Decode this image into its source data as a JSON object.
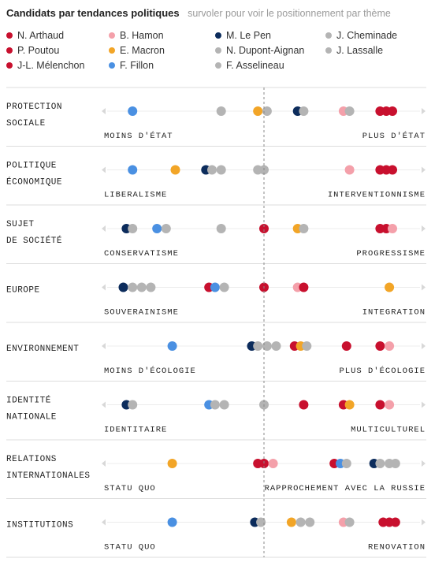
{
  "header": {
    "title": "Candidats par tendances politiques",
    "subtitle": "survoler pour voir le positionnement par thème"
  },
  "colors": {
    "far_left": "#c8102e",
    "socialist": "#f4a0aa",
    "center": "#f2a527",
    "right": "#4a90e2",
    "far_right": "#0c2c5c",
    "minor": "#b4b4b4"
  },
  "legend": [
    {
      "name": "N. Arthaud",
      "color": "#c8102e"
    },
    {
      "name": "B. Hamon",
      "color": "#f4a0aa"
    },
    {
      "name": "M. Le Pen",
      "color": "#0c2c5c"
    },
    {
      "name": "J. Cheminade",
      "color": "#b4b4b4"
    },
    {
      "name": "P. Poutou",
      "color": "#c8102e"
    },
    {
      "name": "E. Macron",
      "color": "#f2a527"
    },
    {
      "name": "N. Dupont-Aignan",
      "color": "#b4b4b4"
    },
    {
      "name": "J. Lassalle",
      "color": "#b4b4b4"
    },
    {
      "name": "J-L. Mélenchon",
      "color": "#c8102e"
    },
    {
      "name": "F. Fillon",
      "color": "#4a90e2"
    },
    {
      "name": "F. Asselineau",
      "color": "#b4b4b4"
    }
  ],
  "chart_data": {
    "type": "scatter",
    "x_range": [
      0,
      100
    ],
    "center_line": 50,
    "rows": [
      {
        "label_lines": [
          "PROTECTION",
          "SOCIALE"
        ],
        "left": "MOINS D'ÉTAT",
        "right": "PLUS D'ÉTAT",
        "points": [
          {
            "x": 7,
            "color": "right"
          },
          {
            "x": 36,
            "color": "minor"
          },
          {
            "x": 48,
            "color": "center"
          },
          {
            "x": 51,
            "color": "minor"
          },
          {
            "x": 61,
            "color": "far_right"
          },
          {
            "x": 63,
            "color": "minor"
          },
          {
            "x": 76,
            "color": "socialist"
          },
          {
            "x": 78,
            "color": "minor"
          },
          {
            "x": 88,
            "color": "far_left"
          },
          {
            "x": 90,
            "color": "far_left"
          },
          {
            "x": 92,
            "color": "far_left"
          }
        ]
      },
      {
        "label_lines": [
          "POLITIQUE",
          "ÉCONOMIQUE"
        ],
        "left": "LIBERALISME",
        "right": "INTERVENTIONNISME",
        "points": [
          {
            "x": 7,
            "color": "right"
          },
          {
            "x": 21,
            "color": "center"
          },
          {
            "x": 31,
            "color": "far_right"
          },
          {
            "x": 33,
            "color": "minor"
          },
          {
            "x": 36,
            "color": "minor"
          },
          {
            "x": 48,
            "color": "minor"
          },
          {
            "x": 50,
            "color": "minor"
          },
          {
            "x": 78,
            "color": "socialist"
          },
          {
            "x": 88,
            "color": "far_left"
          },
          {
            "x": 90,
            "color": "far_left"
          },
          {
            "x": 92,
            "color": "far_left"
          }
        ]
      },
      {
        "label_lines": [
          "SUJET",
          "DE SOCIÉTÉ"
        ],
        "left": "CONSERVATISME",
        "right": "PROGRESSISME",
        "points": [
          {
            "x": 5,
            "color": "far_right"
          },
          {
            "x": 7,
            "color": "minor"
          },
          {
            "x": 15,
            "color": "right"
          },
          {
            "x": 18,
            "color": "minor"
          },
          {
            "x": 36,
            "color": "minor"
          },
          {
            "x": 50,
            "color": "far_left"
          },
          {
            "x": 61,
            "color": "center"
          },
          {
            "x": 63,
            "color": "minor"
          },
          {
            "x": 88,
            "color": "far_left"
          },
          {
            "x": 90,
            "color": "far_left"
          },
          {
            "x": 92,
            "color": "socialist"
          }
        ]
      },
      {
        "label_lines": [
          "EUROPE"
        ],
        "left": "SOUVERAINISME",
        "right": "INTEGRATION",
        "points": [
          {
            "x": 4,
            "color": "far_right"
          },
          {
            "x": 7,
            "color": "minor"
          },
          {
            "x": 10,
            "color": "minor"
          },
          {
            "x": 13,
            "color": "minor"
          },
          {
            "x": 32,
            "color": "far_left"
          },
          {
            "x": 34,
            "color": "right"
          },
          {
            "x": 37,
            "color": "minor"
          },
          {
            "x": 50,
            "color": "far_left"
          },
          {
            "x": 61,
            "color": "socialist"
          },
          {
            "x": 63,
            "color": "far_left"
          },
          {
            "x": 91,
            "color": "center"
          }
        ]
      },
      {
        "label_lines": [
          "ENVIRONNEMENT"
        ],
        "left": "MOINS D'ÉCOLOGIE",
        "right": "PLUS D'ÉCOLOGIE",
        "points": [
          {
            "x": 20,
            "color": "right"
          },
          {
            "x": 46,
            "color": "far_right"
          },
          {
            "x": 48,
            "color": "minor"
          },
          {
            "x": 51,
            "color": "minor"
          },
          {
            "x": 54,
            "color": "minor"
          },
          {
            "x": 60,
            "color": "far_left"
          },
          {
            "x": 62,
            "color": "center"
          },
          {
            "x": 64,
            "color": "minor"
          },
          {
            "x": 77,
            "color": "far_left"
          },
          {
            "x": 88,
            "color": "far_left"
          },
          {
            "x": 91,
            "color": "socialist"
          }
        ]
      },
      {
        "label_lines": [
          "IDENTITÉ",
          "NATIONALE"
        ],
        "left": "IDENTITAIRE",
        "right": "MULTICULTUREL",
        "points": [
          {
            "x": 5,
            "color": "far_right"
          },
          {
            "x": 7,
            "color": "minor"
          },
          {
            "x": 32,
            "color": "right"
          },
          {
            "x": 34,
            "color": "minor"
          },
          {
            "x": 37,
            "color": "minor"
          },
          {
            "x": 50,
            "color": "minor"
          },
          {
            "x": 63,
            "color": "far_left"
          },
          {
            "x": 76,
            "color": "far_left"
          },
          {
            "x": 78,
            "color": "center"
          },
          {
            "x": 88,
            "color": "far_left"
          },
          {
            "x": 91,
            "color": "socialist"
          }
        ]
      },
      {
        "label_lines": [
          "RELATIONS",
          "INTERNATIONALES"
        ],
        "left": "STATU QUO",
        "right": "RAPPROCHEMENT AVEC LA RUSSIE",
        "points": [
          {
            "x": 20,
            "color": "center"
          },
          {
            "x": 48,
            "color": "far_left"
          },
          {
            "x": 50,
            "color": "far_left"
          },
          {
            "x": 53,
            "color": "socialist"
          },
          {
            "x": 73,
            "color": "far_left"
          },
          {
            "x": 75,
            "color": "right"
          },
          {
            "x": 77,
            "color": "minor"
          },
          {
            "x": 86,
            "color": "far_right"
          },
          {
            "x": 88,
            "color": "minor"
          },
          {
            "x": 91,
            "color": "minor"
          },
          {
            "x": 93,
            "color": "minor"
          }
        ]
      },
      {
        "label_lines": [
          "INSTITUTIONS"
        ],
        "left": "STATU QUO",
        "right": "RENOVATION",
        "points": [
          {
            "x": 20,
            "color": "right"
          },
          {
            "x": 47,
            "color": "far_right"
          },
          {
            "x": 49,
            "color": "minor"
          },
          {
            "x": 59,
            "color": "center"
          },
          {
            "x": 62,
            "color": "minor"
          },
          {
            "x": 65,
            "color": "minor"
          },
          {
            "x": 76,
            "color": "socialist"
          },
          {
            "x": 78,
            "color": "minor"
          },
          {
            "x": 89,
            "color": "far_left"
          },
          {
            "x": 91,
            "color": "far_left"
          },
          {
            "x": 93,
            "color": "far_left"
          }
        ]
      }
    ]
  }
}
